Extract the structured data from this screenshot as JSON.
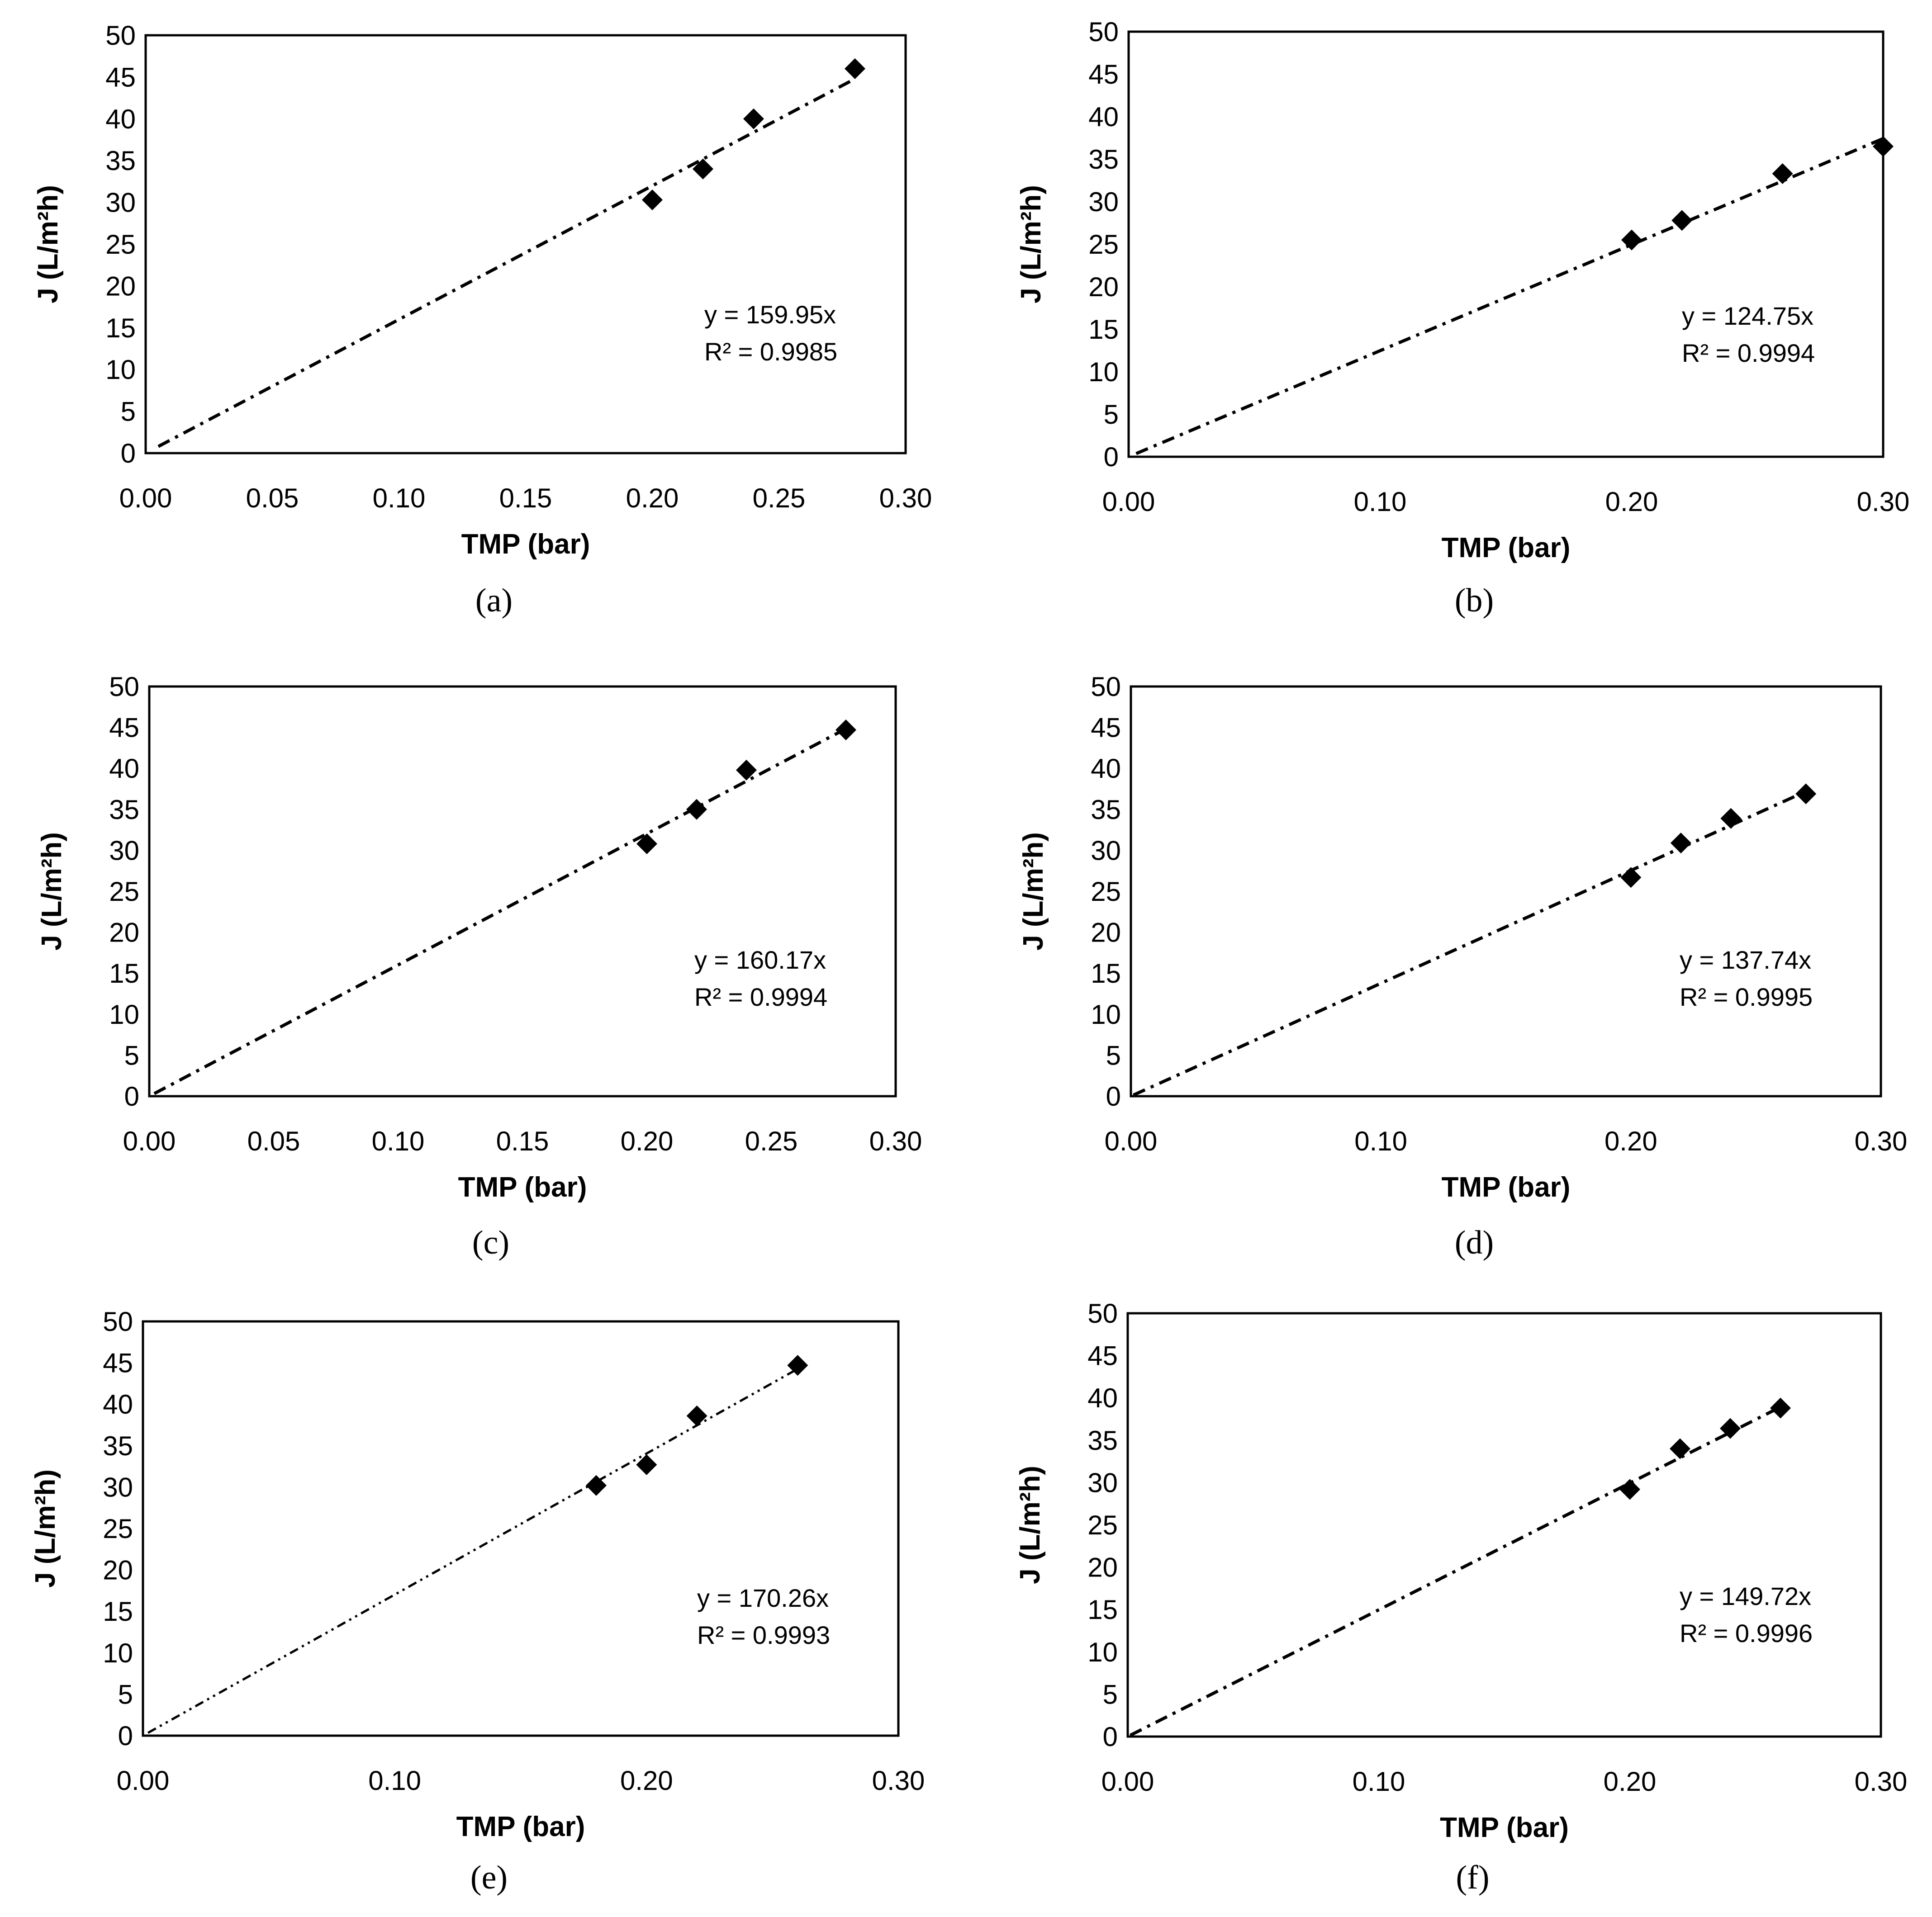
{
  "chart_data": [
    {
      "id": "a",
      "type": "scatter",
      "panel_label": "(a)",
      "xlabel": "TMP (bar)",
      "ylabel": "J (L/m²h)",
      "xlim": [
        0,
        0.3
      ],
      "ylim": [
        0,
        50
      ],
      "x_ticks": [
        "0.00",
        "0.05",
        "0.10",
        "0.15",
        "0.20",
        "0.25",
        "0.30"
      ],
      "y_ticks": [
        "0",
        "5",
        "10",
        "15",
        "20",
        "25",
        "30",
        "35",
        "40",
        "45",
        "50"
      ],
      "x": [
        0.2,
        0.22,
        0.24,
        0.28
      ],
      "y": [
        30.3,
        34.0,
        40.0,
        46.0
      ],
      "trendline": {
        "slope": 159.95,
        "x_range": [
          0.005,
          0.28
        ]
      },
      "equation": "y = 159.95x",
      "r_squared": "R² = 0.9985",
      "legend": "none",
      "grid": false
    },
    {
      "id": "b",
      "type": "scatter",
      "panel_label": "(b)",
      "xlabel": "TMP (bar)",
      "ylabel": "J (L/m²h)",
      "xlim": [
        0,
        0.3
      ],
      "ylim": [
        0,
        50
      ],
      "x_ticks": [
        "0.00",
        "0.10",
        "0.20",
        "0.30"
      ],
      "y_ticks": [
        "0",
        "5",
        "10",
        "15",
        "20",
        "25",
        "30",
        "35",
        "40",
        "45",
        "50"
      ],
      "x": [
        0.2,
        0.22,
        0.26,
        0.3
      ],
      "y": [
        25.5,
        27.8,
        33.3,
        36.5
      ],
      "trendline": {
        "slope": 124.75,
        "x_range": [
          0.003,
          0.3
        ]
      },
      "equation": "y = 124.75x",
      "r_squared": "R² = 0.9994",
      "legend": "none",
      "grid": false
    },
    {
      "id": "c",
      "type": "scatter",
      "panel_label": "(c)",
      "xlabel": "TMP (bar)",
      "ylabel": "J (L/m²h)",
      "xlim": [
        0,
        0.3
      ],
      "ylim": [
        0,
        50
      ],
      "x_ticks": [
        "0.00",
        "0.05",
        "0.10",
        "0.15",
        "0.20",
        "0.25",
        "0.30"
      ],
      "y_ticks": [
        "0",
        "5",
        "10",
        "15",
        "20",
        "25",
        "30",
        "35",
        "40",
        "45",
        "50"
      ],
      "x": [
        0.2,
        0.22,
        0.24,
        0.28
      ],
      "y": [
        30.8,
        35.0,
        39.8,
        44.7
      ],
      "trendline": {
        "slope": 160.17,
        "x_range": [
          0.002,
          0.28
        ]
      },
      "equation": "y = 160.17x",
      "r_squared": "R² = 0.9994",
      "legend": "none",
      "grid": false
    },
    {
      "id": "d",
      "type": "scatter",
      "panel_label": "(d)",
      "xlabel": "TMP (bar)",
      "ylabel": "J (L/m²h)",
      "xlim": [
        0,
        0.3
      ],
      "ylim": [
        0,
        50
      ],
      "x_ticks": [
        "0.00",
        "0.10",
        "0.20",
        "0.30"
      ],
      "y_ticks": [
        "0",
        "5",
        "10",
        "15",
        "20",
        "25",
        "30",
        "35",
        "40",
        "45",
        "50"
      ],
      "x": [
        0.2,
        0.22,
        0.24,
        0.27
      ],
      "y": [
        26.7,
        30.9,
        33.9,
        36.9
      ],
      "trendline": {
        "slope": 137.74,
        "x_range": [
          0.001,
          0.27
        ]
      },
      "equation": "y = 137.74x",
      "r_squared": "R² = 0.9995",
      "legend": "none",
      "grid": false
    },
    {
      "id": "e",
      "type": "scatter",
      "panel_label": "(e)",
      "xlabel": "TMP (bar)",
      "ylabel": "J (L/m²h)",
      "xlim": [
        0,
        0.3
      ],
      "ylim": [
        0,
        50
      ],
      "x_ticks": [
        "0.00",
        "0.10",
        "0.20",
        "0.30"
      ],
      "y_ticks": [
        "0",
        "5",
        "10",
        "15",
        "20",
        "25",
        "30",
        "35",
        "40",
        "45",
        "50"
      ],
      "x": [
        0.18,
        0.2,
        0.22,
        0.26
      ],
      "y": [
        30.2,
        32.7,
        38.6,
        44.7
      ],
      "trendline": {
        "slope": 170.26,
        "x_range": [
          0.002,
          0.26
        ]
      },
      "equation": "y = 170.26x",
      "r_squared": "R² = 0.9993",
      "legend": "none",
      "grid": false
    },
    {
      "id": "f",
      "type": "scatter",
      "panel_label": "(f)",
      "xlabel": "TMP (bar)",
      "ylabel": "J (L/m²h)",
      "xlim": [
        0,
        0.3
      ],
      "ylim": [
        0,
        50
      ],
      "x_ticks": [
        "0.00",
        "0.10",
        "0.20",
        "0.30"
      ],
      "y_ticks": [
        "0",
        "5",
        "10",
        "15",
        "20",
        "25",
        "30",
        "35",
        "40",
        "45",
        "50"
      ],
      "x": [
        0.2,
        0.22,
        0.24,
        0.26
      ],
      "y": [
        29.2,
        34.0,
        36.4,
        38.8
      ],
      "trendline": {
        "slope": 149.72,
        "x_range": [
          0.001,
          0.26
        ]
      },
      "equation": "y = 149.72x",
      "r_squared": "R² = 0.9996",
      "legend": "none",
      "grid": false
    }
  ]
}
